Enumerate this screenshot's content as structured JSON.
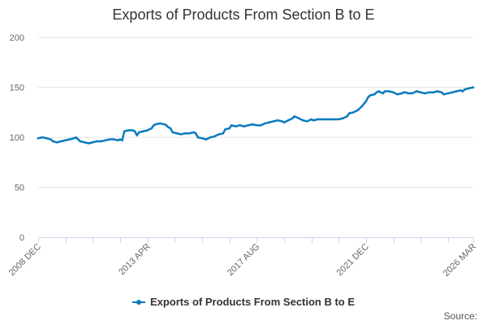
{
  "chart_data": {
    "type": "line",
    "title": "Exports of Products From Section B to E",
    "xlabel": "",
    "ylabel": "",
    "ylim": [
      0,
      200
    ],
    "yticks": [
      0,
      50,
      100,
      150,
      200
    ],
    "x_start": "2008-12",
    "x_end": "2026-03",
    "xtick_labels": [
      {
        "label": "2008 DEC",
        "month_index": 0
      },
      {
        "label": "2013 APR",
        "month_index": 52
      },
      {
        "label": "2017 AUG",
        "month_index": 104
      },
      {
        "label": "2021 DEC",
        "month_index": 156
      },
      {
        "label": "2026 MAR",
        "month_index": 207
      }
    ],
    "minor_tick_month_indices": [
      0,
      13,
      26,
      39,
      52,
      65,
      78,
      91,
      104,
      117,
      130,
      143,
      156,
      169,
      182,
      195,
      207
    ],
    "series": [
      {
        "name": "Exports of Products From Section B to E",
        "color": "#0a7bbf",
        "points": [
          [
            0,
            99
          ],
          [
            2,
            100
          ],
          [
            4,
            99
          ],
          [
            6,
            98
          ],
          [
            7,
            96
          ],
          [
            9,
            95
          ],
          [
            11,
            96
          ],
          [
            13,
            97
          ],
          [
            15,
            98
          ],
          [
            17,
            99
          ],
          [
            18,
            100
          ],
          [
            19,
            98
          ],
          [
            20,
            96
          ],
          [
            22,
            95
          ],
          [
            24,
            94
          ],
          [
            26,
            95
          ],
          [
            28,
            96
          ],
          [
            30,
            96
          ],
          [
            32,
            97
          ],
          [
            34,
            98
          ],
          [
            36,
            98
          ],
          [
            38,
            97
          ],
          [
            39,
            98
          ],
          [
            40,
            97
          ],
          [
            41,
            106
          ],
          [
            43,
            107
          ],
          [
            45,
            107
          ],
          [
            46,
            106
          ],
          [
            47,
            102
          ],
          [
            48,
            105
          ],
          [
            50,
            106
          ],
          [
            52,
            107
          ],
          [
            54,
            109
          ],
          [
            55,
            112
          ],
          [
            56,
            113
          ],
          [
            58,
            114
          ],
          [
            60,
            113
          ],
          [
            61,
            112
          ],
          [
            62,
            110
          ],
          [
            63,
            109
          ],
          [
            64,
            105
          ],
          [
            66,
            104
          ],
          [
            68,
            103
          ],
          [
            70,
            104
          ],
          [
            72,
            104
          ],
          [
            74,
            105
          ],
          [
            75,
            104
          ],
          [
            76,
            100
          ],
          [
            78,
            99
          ],
          [
            80,
            98
          ],
          [
            82,
            100
          ],
          [
            84,
            101
          ],
          [
            86,
            103
          ],
          [
            88,
            104
          ],
          [
            89,
            108
          ],
          [
            91,
            109
          ],
          [
            92,
            112
          ],
          [
            94,
            111
          ],
          [
            96,
            112
          ],
          [
            98,
            111
          ],
          [
            100,
            112
          ],
          [
            102,
            113
          ],
          [
            104,
            112
          ],
          [
            106,
            112
          ],
          [
            108,
            114
          ],
          [
            110,
            115
          ],
          [
            112,
            116
          ],
          [
            114,
            117
          ],
          [
            116,
            116
          ],
          [
            117,
            115
          ],
          [
            119,
            117
          ],
          [
            121,
            119
          ],
          [
            122,
            121
          ],
          [
            124,
            119
          ],
          [
            126,
            117
          ],
          [
            128,
            116
          ],
          [
            130,
            118
          ],
          [
            131,
            117
          ],
          [
            133,
            118
          ],
          [
            135,
            118
          ],
          [
            137,
            118
          ],
          [
            139,
            118
          ],
          [
            141,
            118
          ],
          [
            143,
            118
          ],
          [
            145,
            119
          ],
          [
            147,
            121
          ],
          [
            148,
            124
          ],
          [
            150,
            125
          ],
          [
            152,
            127
          ],
          [
            154,
            131
          ],
          [
            156,
            136
          ],
          [
            157,
            140
          ],
          [
            158,
            142
          ],
          [
            160,
            143
          ],
          [
            161,
            145
          ],
          [
            162,
            146
          ],
          [
            163,
            145
          ],
          [
            164,
            144
          ],
          [
            165,
            146
          ],
          [
            167,
            146
          ],
          [
            169,
            145
          ],
          [
            171,
            143
          ],
          [
            173,
            144
          ],
          [
            174,
            145
          ],
          [
            175,
            145
          ],
          [
            176,
            144
          ],
          [
            178,
            144
          ],
          [
            180,
            146
          ],
          [
            182,
            145
          ],
          [
            184,
            144
          ],
          [
            186,
            145
          ],
          [
            188,
            145
          ],
          [
            190,
            146
          ],
          [
            192,
            145
          ],
          [
            193,
            143
          ],
          [
            195,
            144
          ],
          [
            197,
            145
          ],
          [
            199,
            146
          ],
          [
            201,
            147
          ],
          [
            202,
            146
          ],
          [
            203,
            148
          ],
          [
            205,
            149
          ],
          [
            207,
            150
          ]
        ]
      }
    ],
    "legend": "Exports of Products From Section B to E",
    "legend_position": "bottom",
    "source_label": "Source:"
  }
}
